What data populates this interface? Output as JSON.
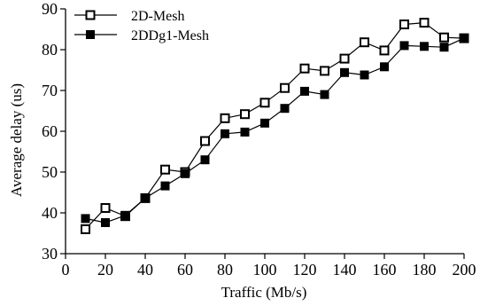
{
  "chart_data": {
    "type": "line",
    "title": "",
    "xlabel": "Traffic (Mb/s)",
    "ylabel": "Average delay (us)",
    "xlim": [
      0,
      200
    ],
    "ylim": [
      30,
      90
    ],
    "xticks": [
      0,
      20,
      40,
      60,
      80,
      100,
      120,
      140,
      160,
      180,
      200
    ],
    "yticks": [
      30,
      40,
      50,
      60,
      70,
      80,
      90
    ],
    "grid": false,
    "legend_position": "top-left",
    "x": [
      10,
      20,
      30,
      40,
      50,
      60,
      70,
      80,
      90,
      100,
      110,
      120,
      130,
      140,
      150,
      160,
      170,
      180,
      190,
      200
    ],
    "series": [
      {
        "name": "2D-Mesh",
        "marker": "open-square",
        "color": "#000000",
        "values": [
          36.0,
          41.2,
          39.2,
          43.6,
          50.6,
          50.0,
          57.6,
          63.2,
          64.2,
          67.0,
          70.6,
          75.4,
          74.8,
          77.8,
          81.8,
          79.8,
          86.2,
          86.6,
          83.0,
          82.8
        ]
      },
      {
        "name": "2DDg1-Mesh",
        "marker": "filled-square",
        "color": "#000000",
        "values": [
          38.6,
          37.6,
          39.4,
          43.6,
          46.6,
          49.6,
          53.0,
          59.4,
          59.8,
          62.0,
          65.6,
          69.8,
          69.0,
          74.4,
          73.8,
          75.8,
          81.0,
          80.8,
          80.6,
          82.8
        ]
      }
    ]
  }
}
